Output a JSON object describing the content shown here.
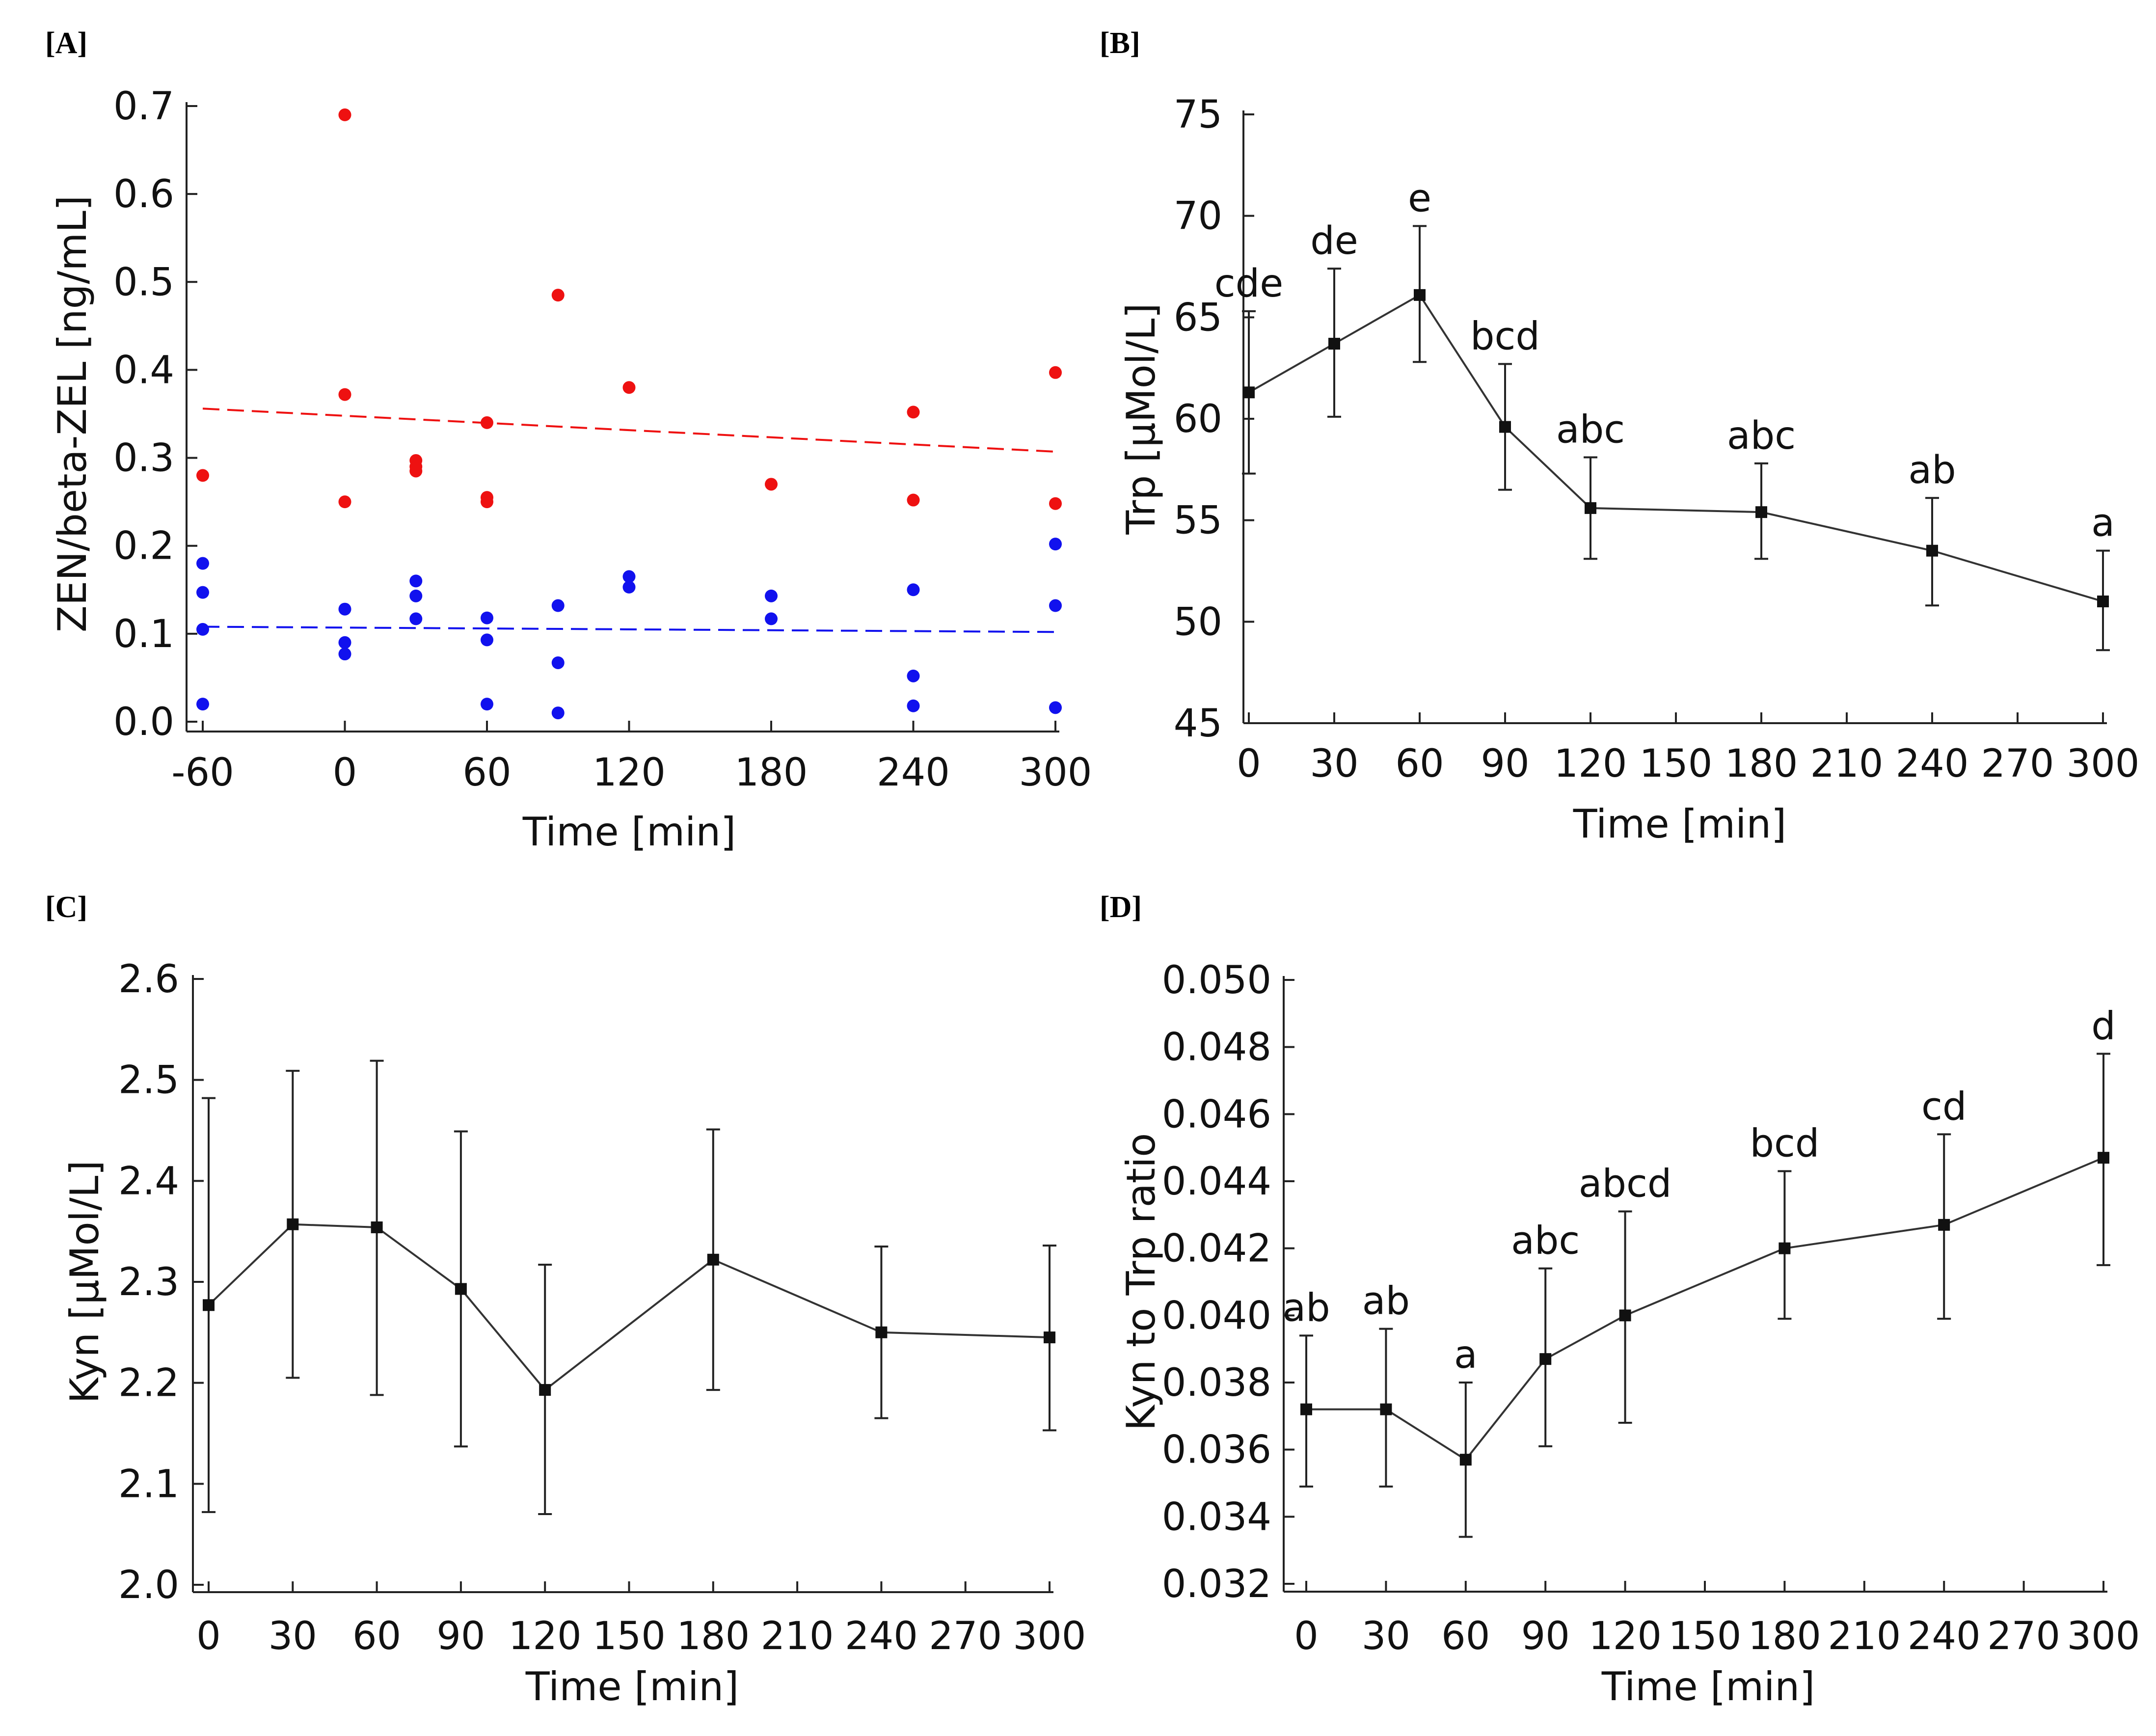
{
  "chart_data": [
    {
      "type": "scatter",
      "panel_label": "[A]",
      "xlabel": "Time [min]",
      "ylabel": "ZEN/beta-ZEL [ng/mL]",
      "xlim": [
        -60,
        300
      ],
      "ylim": [
        0.0,
        0.7
      ],
      "x_ticks": [
        -60,
        0,
        60,
        120,
        180,
        240,
        300
      ],
      "x_tick_labels": [
        "-60",
        "0",
        "60",
        "120",
        "180",
        "240",
        "300"
      ],
      "y_ticks": [
        0.0,
        0.1,
        0.2,
        0.3,
        0.4,
        0.5,
        0.6,
        0.7
      ],
      "y_tick_labels": [
        "0.0",
        "0.1",
        "0.2",
        "0.3",
        "0.4",
        "0.5",
        "0.6",
        "0.7"
      ],
      "series": [
        {
          "name": "red",
          "color": "#ee1111",
          "points": [
            [
              -60,
              0.28
            ],
            [
              0,
              0.69
            ],
            [
              0,
              0.372
            ],
            [
              0,
              0.25
            ],
            [
              30,
              0.297
            ],
            [
              30,
              0.29
            ],
            [
              30,
              0.285
            ],
            [
              60,
              0.34
            ],
            [
              60,
              0.255
            ],
            [
              60,
              0.25
            ],
            [
              90,
              0.485
            ],
            [
              120,
              0.38
            ],
            [
              180,
              0.27
            ],
            [
              240,
              0.352
            ],
            [
              240,
              0.252
            ],
            [
              300,
              0.397
            ],
            [
              300,
              0.248
            ]
          ],
          "trend": [
            [
              -60,
              0.356
            ],
            [
              300,
              0.307
            ]
          ]
        },
        {
          "name": "blue",
          "color": "#1111ee",
          "points": [
            [
              -60,
              0.18
            ],
            [
              -60,
              0.147
            ],
            [
              -60,
              0.105
            ],
            [
              -60,
              0.02
            ],
            [
              0,
              0.128
            ],
            [
              0,
              0.09
            ],
            [
              0,
              0.077
            ],
            [
              30,
              0.16
            ],
            [
              30,
              0.143
            ],
            [
              30,
              0.117
            ],
            [
              60,
              0.118
            ],
            [
              60,
              0.093
            ],
            [
              60,
              0.02
            ],
            [
              90,
              0.132
            ],
            [
              90,
              0.067
            ],
            [
              90,
              0.01
            ],
            [
              120,
              0.165
            ],
            [
              120,
              0.153
            ],
            [
              180,
              0.143
            ],
            [
              180,
              0.117
            ],
            [
              240,
              0.15
            ],
            [
              240,
              0.052
            ],
            [
              240,
              0.018
            ],
            [
              300,
              0.202
            ],
            [
              300,
              0.132
            ],
            [
              300,
              0.016
            ]
          ],
          "trend": [
            [
              -60,
              0.108
            ],
            [
              300,
              0.102
            ]
          ]
        }
      ]
    },
    {
      "type": "line",
      "panel_label": "[B]",
      "xlabel": "Time [min]",
      "ylabel": "Trp [µMol/L]",
      "xlim": [
        0,
        300
      ],
      "ylim": [
        45,
        75
      ],
      "x_ticks": [
        0,
        30,
        60,
        90,
        120,
        150,
        180,
        210,
        240,
        270,
        300
      ],
      "x_tick_labels": [
        "0",
        "30",
        "60",
        "90",
        "120",
        "150",
        "180",
        "210",
        "240",
        "270",
        "300"
      ],
      "y_ticks": [
        45,
        50,
        55,
        60,
        65,
        70,
        75
      ],
      "y_tick_labels": [
        "45",
        "50",
        "55",
        "60",
        "65",
        "70",
        "75"
      ],
      "x": [
        0,
        30,
        60,
        90,
        120,
        180,
        240,
        300
      ],
      "values": [
        61.3,
        63.7,
        66.1,
        59.6,
        55.6,
        55.4,
        53.5,
        51.0
      ],
      "error_upper": [
        65.3,
        67.4,
        69.5,
        62.7,
        58.1,
        57.8,
        56.1,
        53.5
      ],
      "error_lower": [
        57.3,
        60.1,
        62.8,
        56.5,
        53.1,
        53.1,
        50.8,
        48.6
      ],
      "annotations": [
        "cde",
        "de",
        "e",
        "bcd",
        "abc",
        "abc",
        "ab",
        "a"
      ]
    },
    {
      "type": "line",
      "panel_label": "[C]",
      "xlabel": "Time [min]",
      "ylabel": "Kyn [µMol/L]",
      "xlim": [
        0,
        300
      ],
      "ylim": [
        2.0,
        2.6
      ],
      "x_ticks": [
        0,
        30,
        60,
        90,
        120,
        150,
        180,
        210,
        240,
        270,
        300
      ],
      "x_tick_labels": [
        "0",
        "30",
        "60",
        "90",
        "120",
        "150",
        "180",
        "210",
        "240",
        "270",
        "300"
      ],
      "y_ticks": [
        2.0,
        2.1,
        2.2,
        2.3,
        2.4,
        2.5,
        2.6
      ],
      "y_tick_labels": [
        "2.0",
        "2.1",
        "2.2",
        "2.3",
        "2.4",
        "2.5",
        "2.6"
      ],
      "x": [
        0,
        30,
        60,
        90,
        120,
        180,
        240,
        300
      ],
      "values": [
        2.277,
        2.357,
        2.354,
        2.293,
        2.193,
        2.322,
        2.25,
        2.245
      ],
      "error_upper": [
        2.482,
        2.509,
        2.519,
        2.449,
        2.317,
        2.451,
        2.335,
        2.336
      ],
      "error_lower": [
        2.072,
        2.205,
        2.188,
        2.137,
        2.07,
        2.193,
        2.165,
        2.153
      ],
      "annotations": []
    },
    {
      "type": "line",
      "panel_label": "[D]",
      "xlabel": "Time [min]",
      "ylabel": "Kyn to Trp ratio",
      "xlim": [
        0,
        300
      ],
      "ylim": [
        0.032,
        0.05
      ],
      "x_ticks": [
        0,
        30,
        60,
        90,
        120,
        150,
        180,
        210,
        240,
        270,
        300
      ],
      "x_tick_labels": [
        "0",
        "30",
        "60",
        "90",
        "120",
        "150",
        "180",
        "210",
        "240",
        "270",
        "300"
      ],
      "y_ticks": [
        0.032,
        0.034,
        0.036,
        0.038,
        0.04,
        0.042,
        0.044,
        0.046,
        0.048,
        0.05
      ],
      "y_tick_labels": [
        "0.032",
        "0.034",
        "0.036",
        "0.038",
        "0.040",
        "0.042",
        "0.044",
        "0.046",
        "0.048",
        "0.050"
      ],
      "x": [
        0,
        30,
        60,
        90,
        120,
        180,
        240,
        300
      ],
      "values": [
        0.0372,
        0.0372,
        0.0357,
        0.0387,
        0.04,
        0.042,
        0.0427,
        0.0447
      ],
      "error_upper": [
        0.0394,
        0.0396,
        0.038,
        0.0414,
        0.0431,
        0.0443,
        0.0454,
        0.0478
      ],
      "error_lower": [
        0.0349,
        0.0349,
        0.0334,
        0.0361,
        0.0368,
        0.0399,
        0.0399,
        0.0415
      ],
      "annotations": [
        "ab",
        "ab",
        "a",
        "abc",
        "abcd",
        "bcd",
        "cd",
        "d"
      ]
    }
  ]
}
